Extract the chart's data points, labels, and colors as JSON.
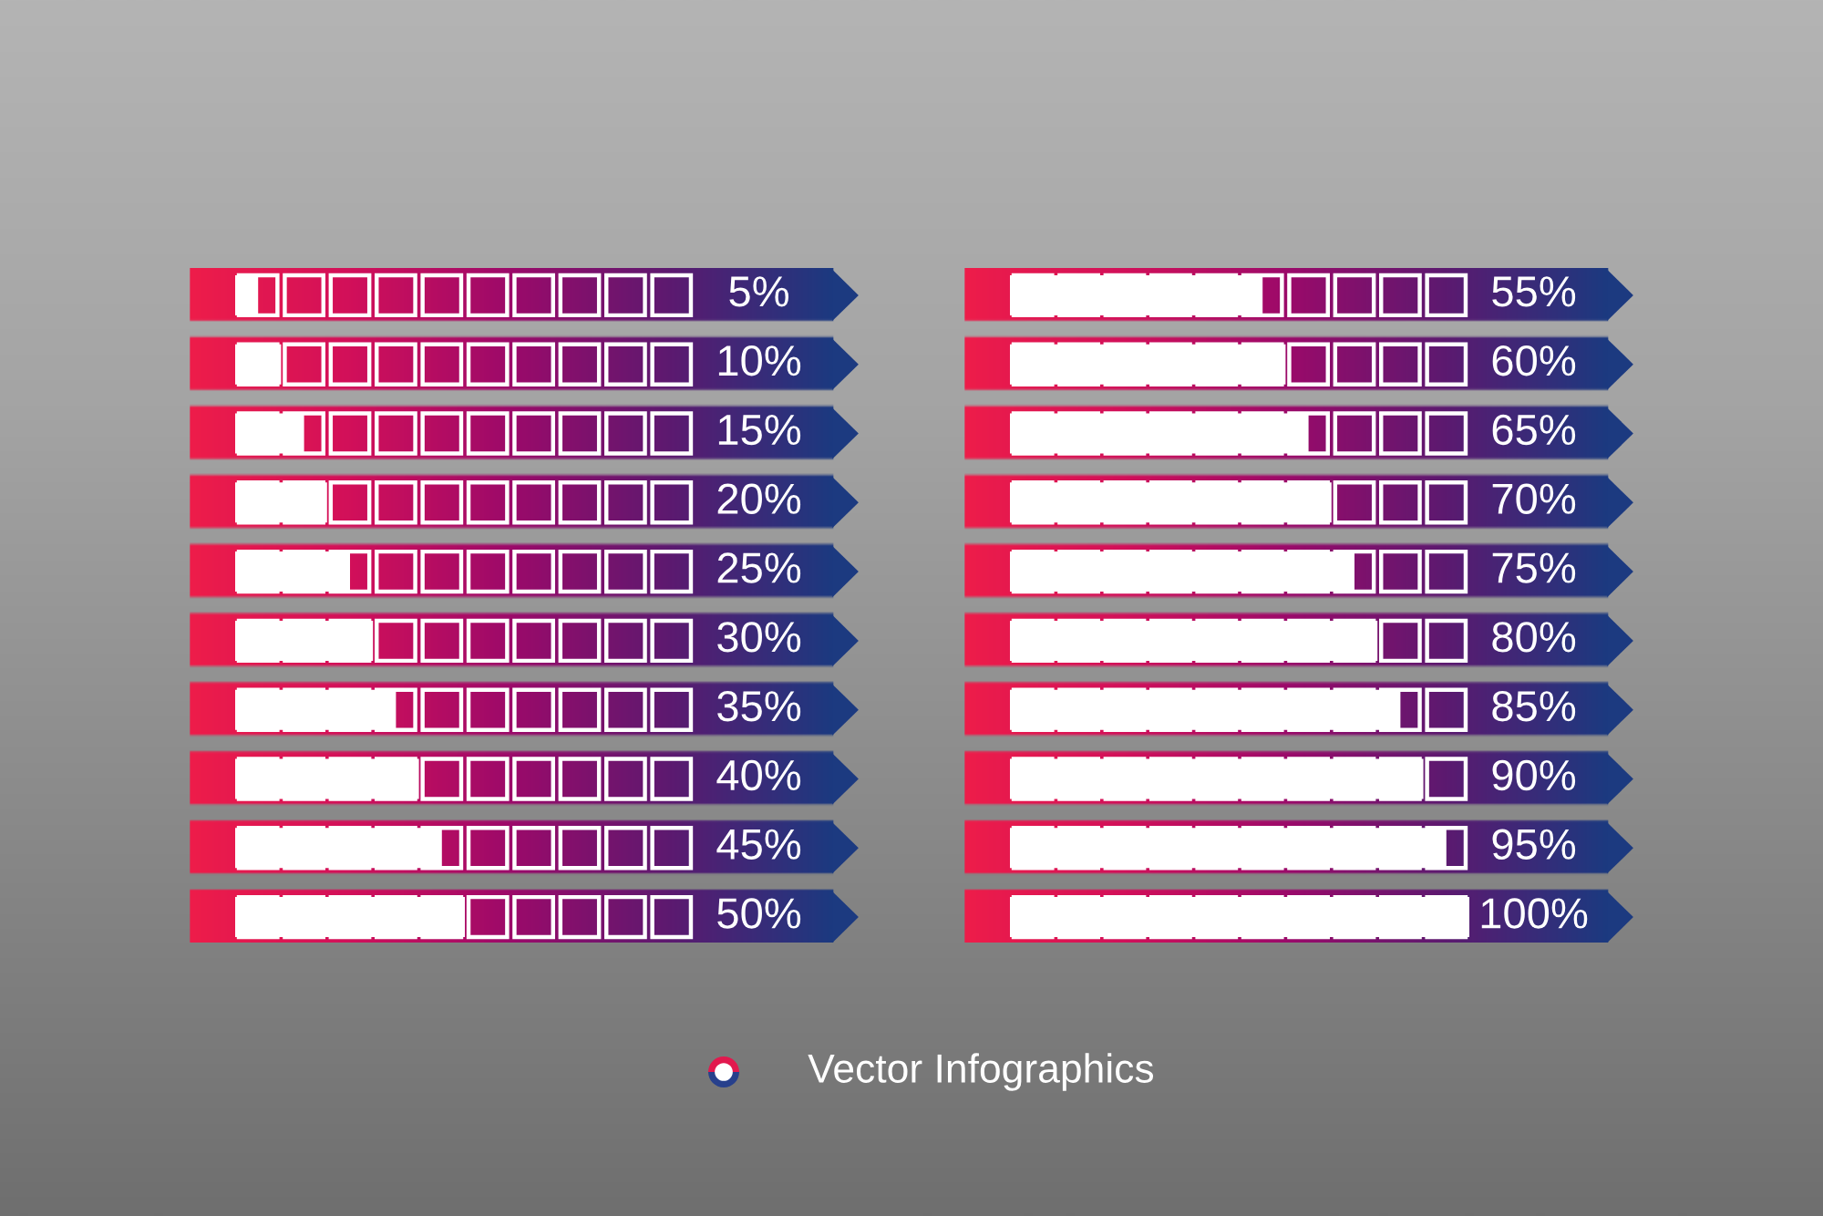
{
  "chart_data": [
    {
      "type": "bar",
      "orientation": "horizontal",
      "categories": [
        null,
        null,
        null,
        null,
        null,
        null,
        null,
        null,
        null,
        null
      ],
      "values": [
        5,
        10,
        15,
        20,
        25,
        30,
        35,
        40,
        45,
        50
      ],
      "color": "#ffffff",
      "value_labels": [
        "5%",
        "10%",
        "15%",
        "20%",
        "25%",
        "30%",
        "35%",
        "40%",
        "45%",
        "50%"
      ],
      "xlim": [
        0,
        100
      ],
      "tick_labels": false
    },
    {
      "type": "bar",
      "orientation": "horizontal",
      "categories": [
        null,
        null,
        null,
        null,
        null,
        null,
        null,
        null,
        null,
        null
      ],
      "values": [
        55,
        60,
        65,
        70,
        75,
        80,
        85,
        90,
        95,
        100
      ],
      "color": "#ffffff",
      "value_labels": [
        "55%",
        "60%",
        "65%",
        "70%",
        "75%",
        "80%",
        "85%",
        "90%",
        "95%",
        "100%"
      ],
      "xlim": [
        0,
        100
      ],
      "tick_labels": false
    },
    {
      "type": "other",
      "title": "Vector Infographics"
    }
  ]
}
